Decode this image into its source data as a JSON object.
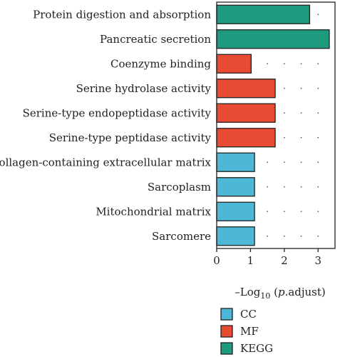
{
  "chart_data": {
    "type": "bar",
    "orientation": "horizontal",
    "categories": [
      "Protein digestion and absorption",
      "Pancreatic secretion",
      "Coenzyme binding",
      "Serine hydrolase activity",
      "Serine-type endopeptidase activity",
      "Serine-type peptidase activity",
      "Collagen-containing extracellular matrix",
      "Sarcoplasm",
      "Mitochondrial matrix",
      "Sarcomere"
    ],
    "values": [
      2.75,
      3.33,
      1.02,
      1.73,
      1.73,
      1.73,
      1.12,
      1.12,
      1.12,
      1.12
    ],
    "groups": [
      "KEGG",
      "KEGG",
      "MF",
      "MF",
      "MF",
      "MF",
      "CC",
      "CC",
      "CC",
      "CC"
    ],
    "xlabel_parts": {
      "prefix": "–Log",
      "sub": "10",
      "open": " (",
      "italic": "p",
      "rest": ".adjust)"
    },
    "xlim": [
      0,
      3.5
    ],
    "xticks": [
      0,
      1,
      2,
      3
    ],
    "grid": "dotted",
    "legend": {
      "placement": "bottom",
      "entries": [
        {
          "name": "CC",
          "color": "#4cb8d6"
        },
        {
          "name": "MF",
          "color": "#e84a34"
        },
        {
          "name": "KEGG",
          "color": "#1e9b7e"
        }
      ]
    }
  }
}
